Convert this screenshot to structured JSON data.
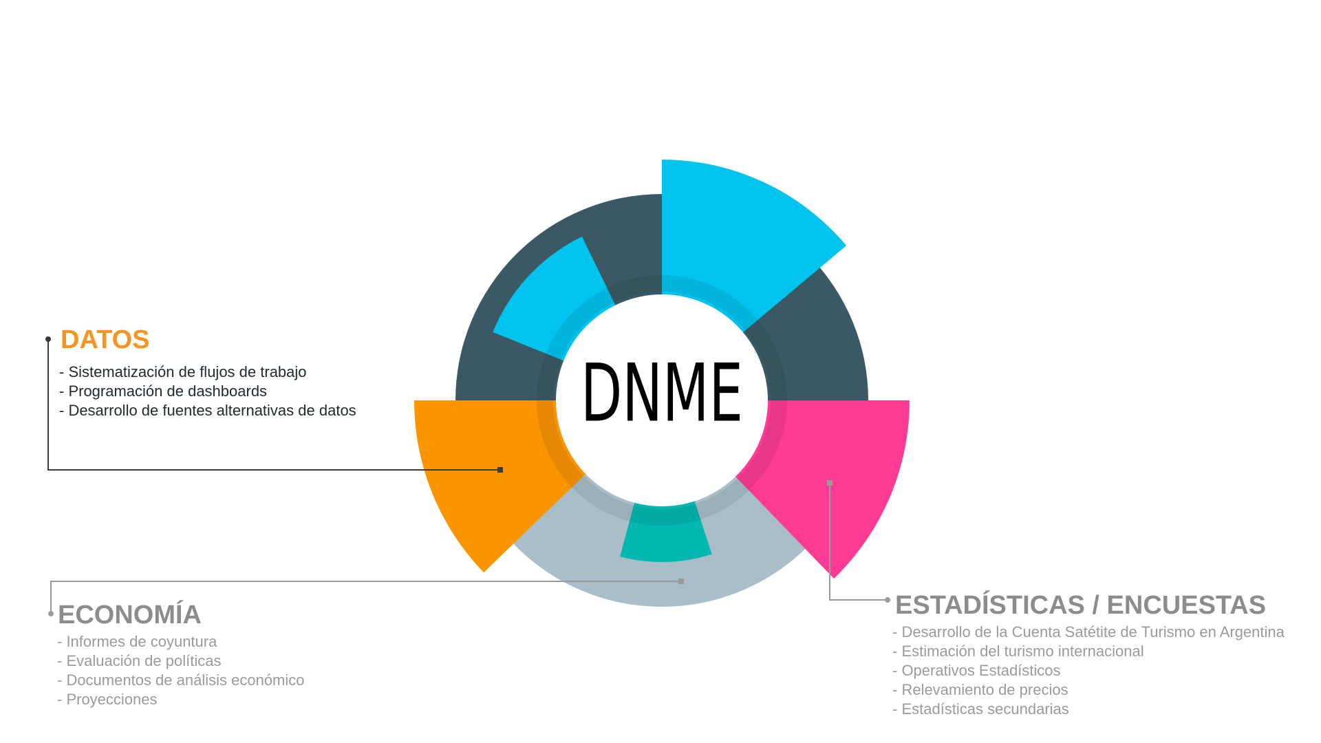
{
  "center_label": "DNME",
  "sections": {
    "datos": {
      "title": "DATOS",
      "items": [
        "- Sistematización de flujos de trabajo",
        "- Programación de dashboards",
        "- Desarrollo de fuentes alternativas de datos"
      ]
    },
    "economia": {
      "title": "ECONOMÍA",
      "items": [
        "- Informes de coyuntura",
        "- Evaluación de políticas",
        "- Documentos de análisis económico",
        "- Proyecciones"
      ]
    },
    "estadisticas": {
      "title": "ESTADÍSTICAS / ENCUESTAS",
      "items": [
        "- Desarrollo de la Cuenta Satétite de Turismo en Argentina",
        "- Estimación del turismo internacional",
        "- Operativos Estadísticos",
        "- Relevamiento de precios",
        "- Estadísticas secundarias"
      ]
    }
  },
  "colors": {
    "cyan": "#00c4ee",
    "dark_slate": "#3a5965",
    "light_gray_blue": "#a9bec8",
    "orange": "#fa9500",
    "pink": "#fe3b94",
    "teal": "#00b8b0",
    "center_fill": "#ffffff",
    "datos_title": "#f7941d",
    "economia_title": "#8c8c8c",
    "estadisticas_title": "#8c8c8c",
    "connector_dark": "#3a3a3a",
    "connector_gray": "#9a9a9a"
  }
}
